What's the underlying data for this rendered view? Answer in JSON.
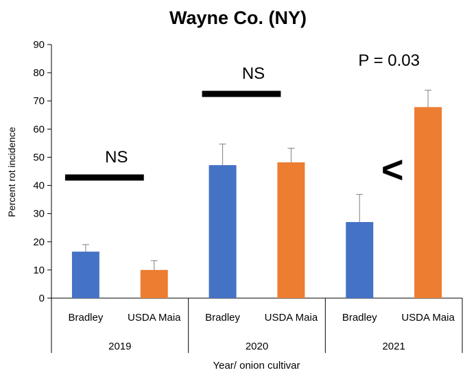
{
  "chart_data": {
    "type": "bar",
    "title": "Wayne Co. (NY)",
    "ylabel": "Percent rot incidence",
    "xlabel": "Year/ onion cultivar",
    "ylim": [
      0,
      90
    ],
    "yticks": [
      0,
      10,
      20,
      30,
      40,
      50,
      60,
      70,
      80,
      90
    ],
    "groups": [
      {
        "year": "2019",
        "bars": [
          {
            "cultivar": "Bradley",
            "value": 16.5,
            "error": 2.5,
            "color": "#4472C4"
          },
          {
            "cultivar": "USDA Maia",
            "value": 10.0,
            "error": 3.3,
            "color": "#ED7D31"
          }
        ],
        "annotation": "NS",
        "annotation_y": 42.8
      },
      {
        "year": "2020",
        "bars": [
          {
            "cultivar": "Bradley",
            "value": 47.2,
            "error": 7.5,
            "color": "#4472C4"
          },
          {
            "cultivar": "USDA Maia",
            "value": 48.2,
            "error": 5.0,
            "color": "#ED7D31"
          }
        ],
        "annotation": "NS",
        "annotation_y": 72.5
      },
      {
        "year": "2021",
        "bars": [
          {
            "cultivar": "Bradley",
            "value": 27.0,
            "error": 9.8,
            "color": "#4472C4"
          },
          {
            "cultivar": "USDA Maia",
            "value": 67.8,
            "error": 6.0,
            "color": "#ED7D31"
          }
        ],
        "annotation": "P = 0.03",
        "comparison": "<"
      }
    ]
  }
}
